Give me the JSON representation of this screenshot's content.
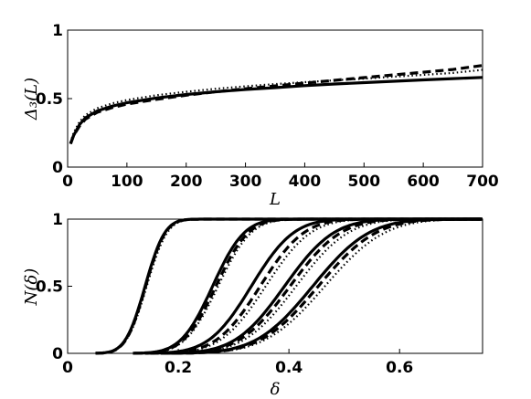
{
  "chart_data": [
    {
      "type": "line",
      "xlabel": "L",
      "ylabel": "Δ₃(L)",
      "xlim": [
        0,
        700
      ],
      "ylim": [
        0,
        1
      ],
      "xticks": [
        0,
        100,
        200,
        300,
        400,
        500,
        600,
        700
      ],
      "yticks": [
        0,
        0.5,
        1
      ],
      "xtick_labels": [
        "0",
        "100",
        "200",
        "300",
        "400",
        "500",
        "600",
        "700"
      ],
      "ytick_labels": [
        "0",
        "0.5",
        "1"
      ],
      "grid": false,
      "series": [
        {
          "style": "solid",
          "x": [
            5,
            10,
            20,
            30,
            50,
            75,
            100,
            150,
            200,
            250,
            300,
            350,
            400,
            450,
            500,
            550,
            600,
            650,
            700
          ],
          "y": [
            0.17,
            0.23,
            0.31,
            0.36,
            0.41,
            0.445,
            0.47,
            0.505,
            0.53,
            0.55,
            0.567,
            0.58,
            0.595,
            0.607,
            0.617,
            0.627,
            0.637,
            0.646,
            0.655
          ]
        },
        {
          "style": "dashed",
          "x": [
            5,
            10,
            20,
            30,
            50,
            75,
            100,
            150,
            200,
            250,
            300,
            350,
            400,
            450,
            500,
            550,
            600,
            650,
            700
          ],
          "y": [
            0.17,
            0.23,
            0.3,
            0.35,
            0.4,
            0.435,
            0.46,
            0.495,
            0.525,
            0.55,
            0.572,
            0.593,
            0.613,
            0.633,
            0.653,
            0.673,
            0.693,
            0.713,
            0.742
          ]
        },
        {
          "style": "dotted",
          "x": [
            5,
            10,
            20,
            30,
            50,
            75,
            100,
            150,
            200,
            250,
            300,
            350,
            400,
            450,
            500,
            550,
            600,
            650,
            700
          ],
          "y": [
            0.18,
            0.25,
            0.33,
            0.38,
            0.43,
            0.465,
            0.49,
            0.525,
            0.55,
            0.572,
            0.59,
            0.606,
            0.62,
            0.633,
            0.646,
            0.66,
            0.673,
            0.687,
            0.71
          ]
        }
      ]
    },
    {
      "type": "line",
      "xlabel": "δ",
      "ylabel": "N(δ)",
      "xlim": [
        0,
        0.75
      ],
      "ylim": [
        0,
        1
      ],
      "xticks": [
        0,
        0.2,
        0.4,
        0.6
      ],
      "yticks": [
        0,
        0.5,
        1
      ],
      "xtick_labels": [
        "0",
        "0.2",
        "0.4",
        "0.6"
      ],
      "ytick_labels": [
        "0",
        "0.5",
        "1"
      ],
      "grid": false,
      "series": [
        {
          "style": "solid",
          "group": 1,
          "mu": 0.14,
          "sigma": 0.028
        },
        {
          "style": "dashed",
          "group": 1,
          "mu": 0.141,
          "sigma": 0.028
        },
        {
          "style": "dotted",
          "group": 1,
          "mu": 0.143,
          "sigma": 0.029
        },
        {
          "style": "solid",
          "group": 2,
          "mu": 0.262,
          "sigma": 0.045
        },
        {
          "style": "dashed",
          "group": 2,
          "mu": 0.268,
          "sigma": 0.046
        },
        {
          "style": "dotted",
          "group": 2,
          "mu": 0.272,
          "sigma": 0.047
        },
        {
          "style": "solid",
          "group": 3,
          "mu": 0.332,
          "sigma": 0.06
        },
        {
          "style": "dashed",
          "group": 3,
          "mu": 0.348,
          "sigma": 0.062
        },
        {
          "style": "dotted",
          "group": 3,
          "mu": 0.358,
          "sigma": 0.064
        },
        {
          "style": "solid",
          "group": 4,
          "mu": 0.392,
          "sigma": 0.07
        },
        {
          "style": "dashed",
          "group": 4,
          "mu": 0.402,
          "sigma": 0.072
        },
        {
          "style": "dotted",
          "group": 4,
          "mu": 0.413,
          "sigma": 0.074
        },
        {
          "style": "solid",
          "group": 5,
          "mu": 0.443,
          "sigma": 0.08
        },
        {
          "style": "dashed",
          "group": 5,
          "mu": 0.453,
          "sigma": 0.082
        },
        {
          "style": "dotted",
          "group": 5,
          "mu": 0.465,
          "sigma": 0.085
        }
      ]
    }
  ]
}
